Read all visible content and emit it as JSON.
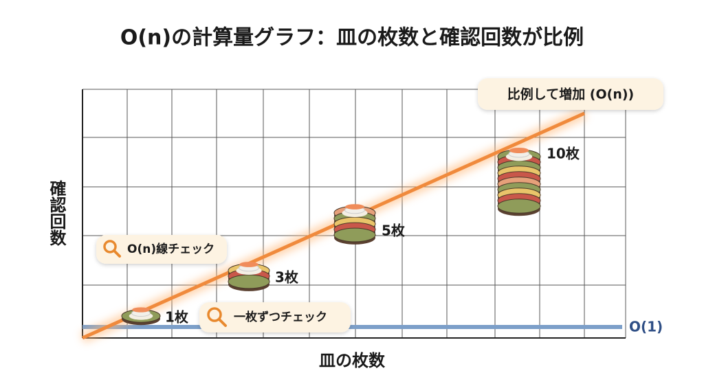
{
  "title": "O(n)の計算量グラフ：皿の枚数と確認回数が比例",
  "y_axis_label": "確認回数",
  "x_axis_label": "皿の枚数",
  "callouts": {
    "linear_growth": "比例して増加 (O(n))",
    "linear_check": "O(n)線チェック",
    "one_by_one": "一枚ずつチェック"
  },
  "line_labels": {
    "constant": "O(1)"
  },
  "plate_labels": [
    "1枚",
    "3枚",
    "5枚",
    "10枚"
  ]
}
